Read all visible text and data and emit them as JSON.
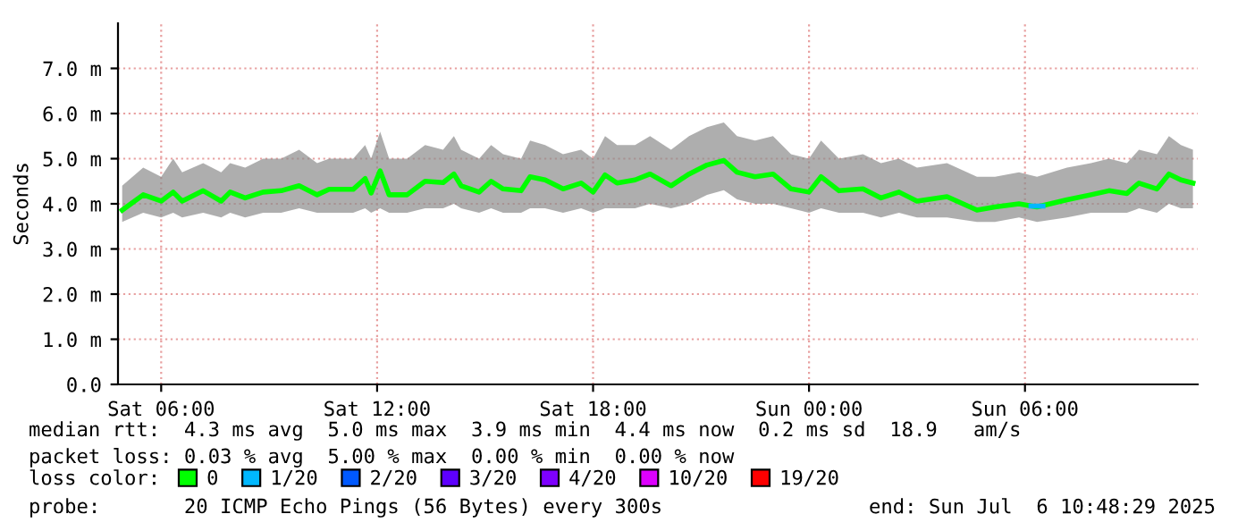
{
  "chart_data": {
    "type": "line",
    "ylabel": "Seconds",
    "legend_title": "loss color:",
    "legend": "bottom",
    "grid": true,
    "marker": "none",
    "line_style": "solid",
    "xlim": [
      "2025-07-05T04:48",
      "2025-07-06T10:48"
    ],
    "xticks": [
      {
        "value": "2025-07-05T06:00",
        "label": "Sat 06:00"
      },
      {
        "value": "2025-07-05T12:00",
        "label": "Sat 12:00"
      },
      {
        "value": "2025-07-05T18:00",
        "label": "Sat 18:00"
      },
      {
        "value": "2025-07-06T00:00",
        "label": "Sun 00:00"
      },
      {
        "value": "2025-07-06T06:00",
        "label": "Sun 06:00"
      }
    ],
    "ylim": [
      0,
      8
    ],
    "yticks": [
      {
        "value": 0,
        "label": "0.0"
      },
      {
        "value": 1,
        "label": "1.0 m"
      },
      {
        "value": 2,
        "label": "2.0 m"
      },
      {
        "value": 3,
        "label": "3.0 m"
      },
      {
        "value": 4,
        "label": "4.0 m"
      },
      {
        "value": 5,
        "label": "5.0 m"
      },
      {
        "value": 6,
        "label": "6.0 m"
      },
      {
        "value": 7,
        "label": "7.0 m"
      }
    ],
    "series": [
      {
        "name": "0",
        "color": "#00ff00",
        "x": [
          "2025-07-05T04:55",
          "2025-07-05T05:30",
          "2025-07-05T06:00",
          "2025-07-05T06:20",
          "2025-07-05T06:35",
          "2025-07-05T07:10",
          "2025-07-05T07:40",
          "2025-07-05T07:55",
          "2025-07-05T08:20",
          "2025-07-05T08:50",
          "2025-07-05T09:20",
          "2025-07-05T09:50",
          "2025-07-05T10:20",
          "2025-07-05T10:40",
          "2025-07-05T11:20",
          "2025-07-05T11:40",
          "2025-07-05T11:50",
          "2025-07-05T12:05",
          "2025-07-05T12:20",
          "2025-07-05T12:50",
          "2025-07-05T13:20",
          "2025-07-05T13:50",
          "2025-07-05T14:08",
          "2025-07-05T14:20",
          "2025-07-05T14:50",
          "2025-07-05T15:10",
          "2025-07-05T15:30",
          "2025-07-05T16:00",
          "2025-07-05T16:15",
          "2025-07-05T16:40",
          "2025-07-05T17:10",
          "2025-07-05T17:40",
          "2025-07-05T18:00",
          "2025-07-05T18:20",
          "2025-07-05T18:40",
          "2025-07-05T19:10",
          "2025-07-05T19:35",
          "2025-07-05T20:10",
          "2025-07-05T20:40",
          "2025-07-05T21:10",
          "2025-07-05T21:38",
          "2025-07-05T22:00",
          "2025-07-05T22:30",
          "2025-07-05T23:00",
          "2025-07-05T23:30",
          "2025-07-06T00:00",
          "2025-07-06T00:20",
          "2025-07-06T00:50",
          "2025-07-06T01:30",
          "2025-07-06T02:00",
          "2025-07-06T02:30",
          "2025-07-06T03:00",
          "2025-07-06T03:50",
          "2025-07-06T04:40",
          "2025-07-06T05:10",
          "2025-07-06T05:50",
          "2025-07-06T06:20",
          "2025-07-06T07:10",
          "2025-07-06T07:50",
          "2025-07-06T08:20",
          "2025-07-06T08:50",
          "2025-07-06T09:10",
          "2025-07-06T09:40",
          "2025-07-06T10:00",
          "2025-07-06T10:20",
          "2025-07-06T10:40"
        ],
        "values": [
          3.86,
          4.2,
          4.06,
          4.26,
          4.06,
          4.29,
          4.06,
          4.26,
          4.13,
          4.26,
          4.29,
          4.4,
          4.2,
          4.32,
          4.32,
          4.56,
          4.24,
          4.73,
          4.2,
          4.2,
          4.5,
          4.47,
          4.66,
          4.4,
          4.26,
          4.5,
          4.33,
          4.29,
          4.6,
          4.53,
          4.33,
          4.46,
          4.26,
          4.64,
          4.46,
          4.53,
          4.66,
          4.4,
          4.66,
          4.86,
          4.96,
          4.7,
          4.6,
          4.66,
          4.33,
          4.26,
          4.6,
          4.29,
          4.33,
          4.13,
          4.26,
          4.06,
          4.16,
          3.86,
          3.93,
          4.0,
          3.93,
          4.09,
          4.2,
          4.29,
          4.23,
          4.46,
          4.33,
          4.66,
          4.53,
          4.46
        ],
        "lower": [
          3.6,
          3.8,
          3.7,
          3.8,
          3.7,
          3.8,
          3.7,
          3.8,
          3.7,
          3.8,
          3.8,
          3.9,
          3.8,
          3.8,
          3.8,
          3.9,
          3.8,
          3.9,
          3.8,
          3.8,
          3.9,
          3.9,
          4.0,
          3.9,
          3.8,
          3.9,
          3.8,
          3.8,
          3.9,
          3.9,
          3.8,
          3.9,
          3.8,
          3.9,
          3.9,
          3.9,
          4.0,
          3.9,
          4.0,
          4.2,
          4.3,
          4.1,
          4.0,
          4.0,
          3.9,
          3.8,
          3.9,
          3.8,
          3.8,
          3.7,
          3.8,
          3.7,
          3.7,
          3.6,
          3.6,
          3.7,
          3.6,
          3.7,
          3.8,
          3.8,
          3.8,
          3.9,
          3.8,
          4.0,
          3.9,
          3.9
        ],
        "upper": [
          4.4,
          4.8,
          4.6,
          5.0,
          4.7,
          4.9,
          4.7,
          4.9,
          4.8,
          5.0,
          5.0,
          5.2,
          4.9,
          5.0,
          5.0,
          5.3,
          5.0,
          5.6,
          5.0,
          5.0,
          5.3,
          5.2,
          5.5,
          5.2,
          5.0,
          5.3,
          5.1,
          5.0,
          5.4,
          5.3,
          5.1,
          5.2,
          5.0,
          5.5,
          5.3,
          5.3,
          5.5,
          5.2,
          5.5,
          5.7,
          5.8,
          5.5,
          5.4,
          5.5,
          5.1,
          5.0,
          5.4,
          5.0,
          5.1,
          4.9,
          5.0,
          4.8,
          4.9,
          4.6,
          4.6,
          4.7,
          4.6,
          4.8,
          4.9,
          5.0,
          4.9,
          5.2,
          5.1,
          5.5,
          5.3,
          5.2
        ]
      },
      {
        "name": "1/20",
        "color": "#00b8ff",
        "x": [
          "2025-07-06T06:10",
          "2025-07-06T06:30"
        ],
        "values": [
          3.95,
          3.95
        ]
      },
      {
        "name": "2/20",
        "color": "#0059ff"
      },
      {
        "name": "3/20",
        "color": "#5e00ff"
      },
      {
        "name": "4/20",
        "color": "#7e00ff"
      },
      {
        "name": "10/20",
        "color": "#dd00ff"
      },
      {
        "name": "19/20",
        "color": "#ff0000"
      }
    ],
    "annotations": [
      "median rtt:  4.3 ms avg  5.0 ms max  3.9 ms min  4.4 ms now  0.2 ms sd  18.9   am/s",
      "packet loss: 0.03 % avg  5.00 % max  0.00 % min  0.00 % now",
      "probe:       20 ICMP Echo Pings (56 Bytes) every 300s",
      "end: Sun Jul  6 10:48:29 2025"
    ]
  }
}
